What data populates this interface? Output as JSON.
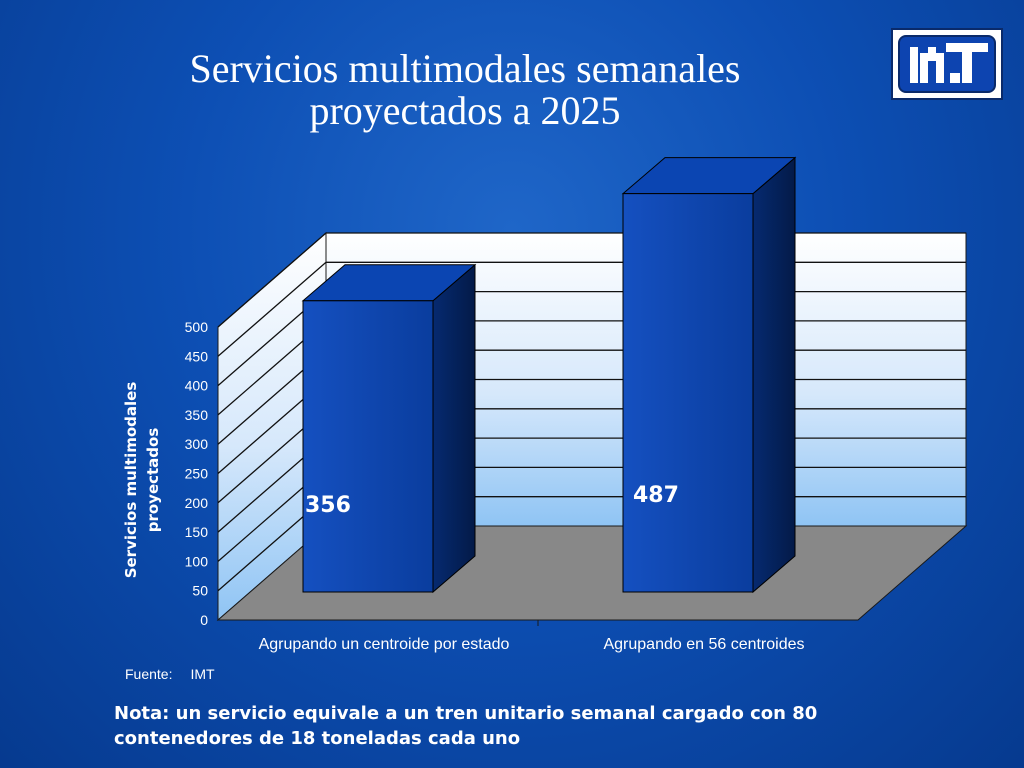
{
  "title": {
    "line1": "Servicios multimodales semanales",
    "line2": "proyectados a 2025"
  },
  "logo": {
    "icon": "imt-logo-icon",
    "text": "IMT"
  },
  "chart_data": {
    "type": "bar",
    "categories": [
      "Agrupando un centroide por estado",
      "Agrupando en 56 centroides"
    ],
    "values": [
      356,
      487
    ],
    "data_labels": [
      "356",
      "487"
    ],
    "ylabel_lines": [
      "Servicios multimodales",
      "proyectados"
    ],
    "ylim": [
      0,
      500
    ],
    "yticks": [
      0,
      50,
      100,
      150,
      200,
      250,
      300,
      350,
      400,
      450,
      500
    ],
    "grid": true,
    "legend": "none",
    "bar_color": "#0a45b0",
    "floor_color": "#888888"
  },
  "source": {
    "label": "Fuente:",
    "value": "IMT"
  },
  "note": {
    "line1": "Nota: un servicio equivale a un tren unitario semanal cargado con 80",
    "line2": "contenedores de 18 toneladas cada uno"
  }
}
